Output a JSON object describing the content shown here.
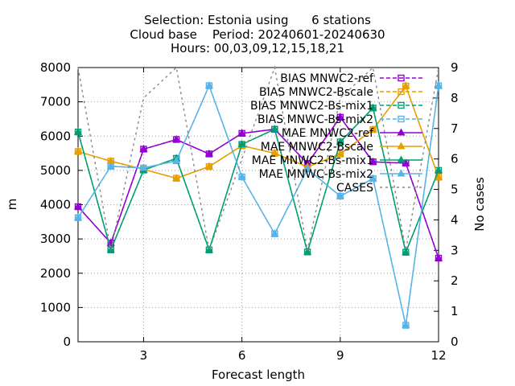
{
  "chart_data": {
    "type": "line",
    "title_lines": [
      "Selection: Estonia using      6 stations",
      "Cloud base    Period: 20240601-20240630",
      "Hours: 00,03,09,12,15,18,21"
    ],
    "xlabel": "Forecast length",
    "ylabel": "m",
    "y2label": "No cases",
    "xlim": [
      1,
      12
    ],
    "ylim": [
      0,
      8000
    ],
    "y2lim": [
      0,
      9
    ],
    "xticks": [
      3,
      6,
      9,
      12
    ],
    "yticks": [
      0,
      1000,
      2000,
      3000,
      4000,
      5000,
      6000,
      7000,
      8000
    ],
    "y2ticks": [
      0,
      1,
      2,
      3,
      4,
      5,
      6,
      7,
      8,
      9
    ],
    "grid": true,
    "legend_position": "top-right",
    "x": [
      1,
      2,
      3,
      4,
      5,
      6,
      7,
      8,
      9,
      10,
      11,
      12
    ],
    "series": [
      {
        "name": "BIAS MNWC2-ref",
        "color": "#9400d3",
        "marker": "square",
        "dash": "dashed",
        "values": [
          3940,
          2880,
          5620,
          5900,
          5480,
          6080,
          6200,
          5200,
          6550,
          5250,
          5210,
          2440
        ]
      },
      {
        "name": "BIAS MNWC2-Bscale",
        "color": "#e69f00",
        "marker": "square",
        "dash": "dashed",
        "values": [
          5550,
          5270,
          5030,
          4770,
          5110,
          5720,
          5500,
          5100,
          5480,
          6190,
          7460,
          4800
        ]
      },
      {
        "name": "BIAS MNWC2-Bs-mix1",
        "color": "#009e73",
        "marker": "square",
        "dash": "dashed",
        "values": [
          6120,
          2680,
          5010,
          5350,
          2680,
          5760,
          6200,
          2620,
          5830,
          6820,
          2610,
          5000
        ]
      },
      {
        "name": "BIAS MNWC-Bs-mix2",
        "color": "#56b4e9",
        "marker": "square",
        "dash": "dashed",
        "values": [
          3620,
          5120,
          5070,
          5280,
          7470,
          4810,
          3150,
          5040,
          4250,
          4760,
          480,
          7470
        ]
      },
      {
        "name": "MAE MNWC2-ref",
        "color": "#9400d3",
        "marker": "triangle",
        "dash": "solid",
        "values": [
          3940,
          2880,
          5620,
          5900,
          5480,
          6080,
          6200,
          5200,
          6550,
          5250,
          5210,
          2440
        ]
      },
      {
        "name": "MAE MNWC2-Bscale",
        "color": "#e69f00",
        "marker": "triangle",
        "dash": "solid",
        "values": [
          5550,
          5270,
          5030,
          4770,
          5110,
          5720,
          5500,
          5100,
          5480,
          6190,
          7460,
          4800
        ]
      },
      {
        "name": "MAE MNWC2-Bs-mix1",
        "color": "#009e73",
        "marker": "triangle",
        "dash": "solid",
        "values": [
          6120,
          2680,
          5010,
          5350,
          2680,
          5760,
          6200,
          2620,
          5830,
          6820,
          2610,
          5000
        ]
      },
      {
        "name": "MAE MNWC-Bs-mix2",
        "color": "#56b4e9",
        "marker": "triangle",
        "dash": "solid",
        "values": [
          3620,
          5120,
          5070,
          5280,
          7470,
          4810,
          3150,
          5040,
          4250,
          4760,
          480,
          7470
        ]
      },
      {
        "name": "CASES",
        "color": "#888888",
        "marker": "none",
        "dash": "dotted",
        "axis": "y2",
        "values": [
          9,
          3,
          8,
          9,
          3,
          6,
          9,
          3,
          8,
          9,
          3,
          9
        ]
      }
    ]
  }
}
